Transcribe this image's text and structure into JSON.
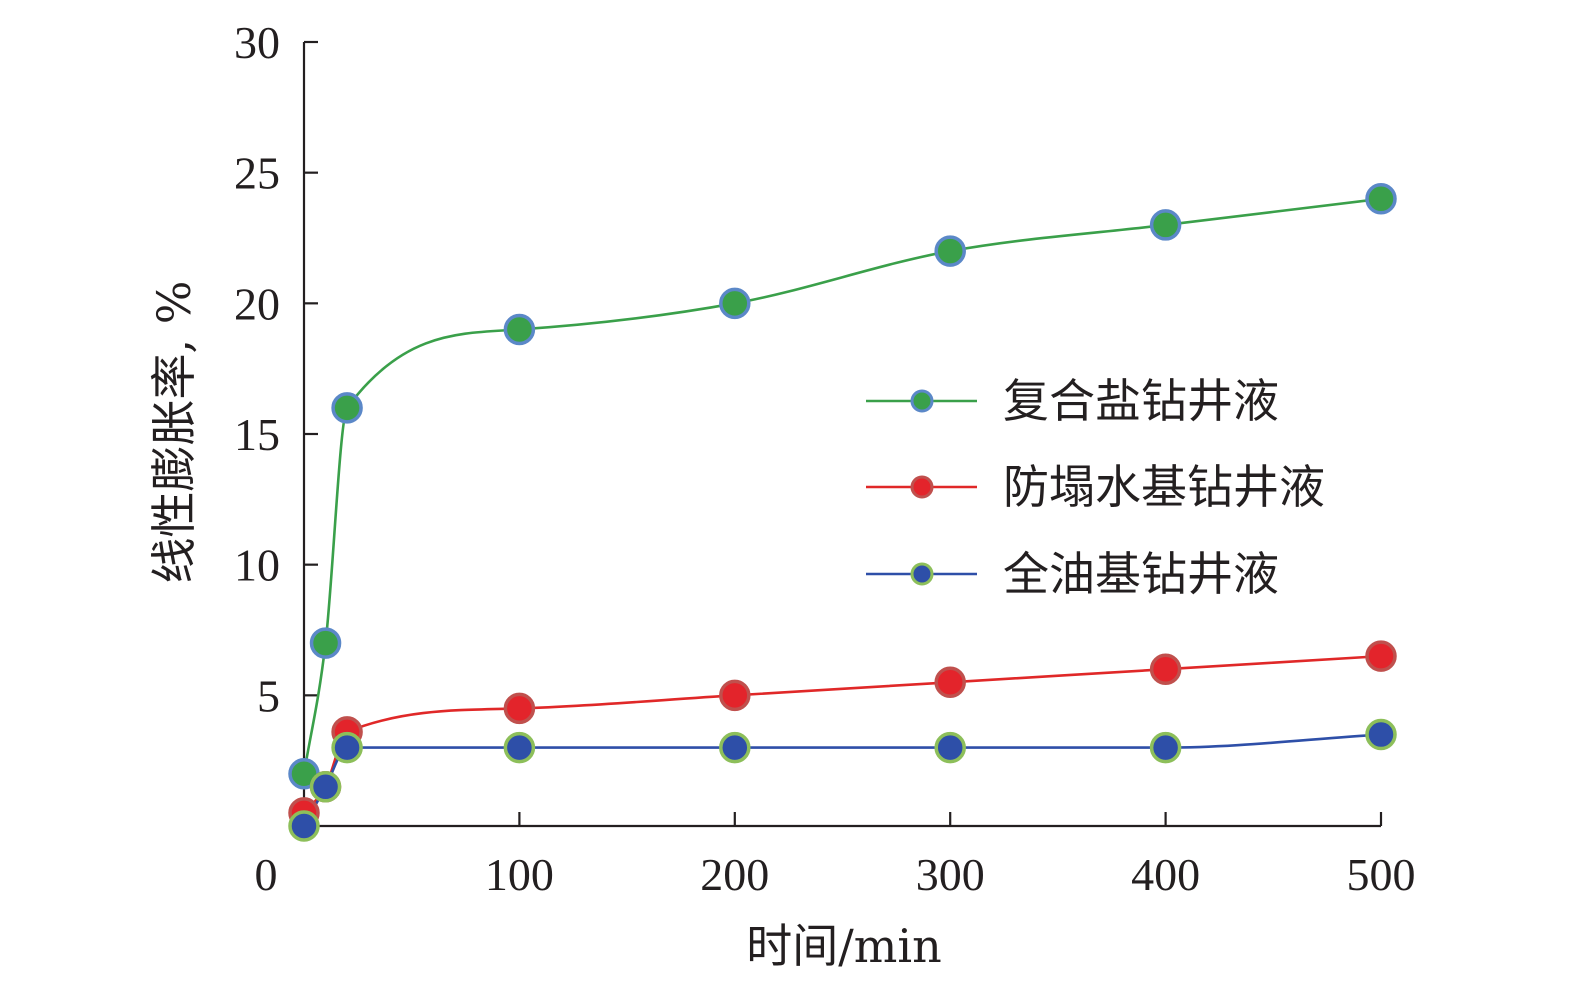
{
  "chart_data": {
    "type": "line",
    "title": "",
    "xlabel": "时间/min",
    "ylabel": "线性膨胀率, %",
    "xlim": [
      0,
      500
    ],
    "ylim": [
      0,
      30
    ],
    "xticks": [
      0,
      100,
      200,
      300,
      400,
      500
    ],
    "yticks": [
      5,
      10,
      15,
      20,
      25,
      30
    ],
    "xtick_labels": [
      "0",
      "100",
      "200",
      "300",
      "400",
      "500"
    ],
    "ytick_labels": [
      "5",
      "10",
      "15",
      "20",
      "25",
      "30"
    ],
    "grid": false,
    "legend_position": "right-center",
    "series": [
      {
        "name": "复合盐钻井液",
        "line_color": "#3aa04a",
        "marker_fill": "#3aa04a",
        "marker_edge": "#5b88c8",
        "x": [
          0,
          10,
          20,
          100,
          200,
          300,
          400,
          500
        ],
        "y": [
          2.0,
          7.0,
          16.0,
          19.0,
          20.0,
          22.0,
          23.0,
          24.0
        ]
      },
      {
        "name": "防塌水基钻井液",
        "line_color": "#e02828",
        "marker_fill": "#e3242b",
        "marker_edge": "#c0504d",
        "x": [
          0,
          10,
          20,
          100,
          200,
          300,
          400,
          500
        ],
        "y": [
          0.5,
          1.5,
          3.6,
          4.5,
          5.0,
          5.5,
          6.0,
          6.5
        ]
      },
      {
        "name": "全油基钻井液",
        "line_color": "#2e4fa8",
        "marker_fill": "#2e4fa8",
        "marker_edge": "#8dbf5a",
        "x": [
          0,
          10,
          20,
          100,
          200,
          300,
          400,
          500
        ],
        "y": [
          0.0,
          1.5,
          3.0,
          3.0,
          3.0,
          3.0,
          3.0,
          3.5
        ]
      }
    ]
  }
}
